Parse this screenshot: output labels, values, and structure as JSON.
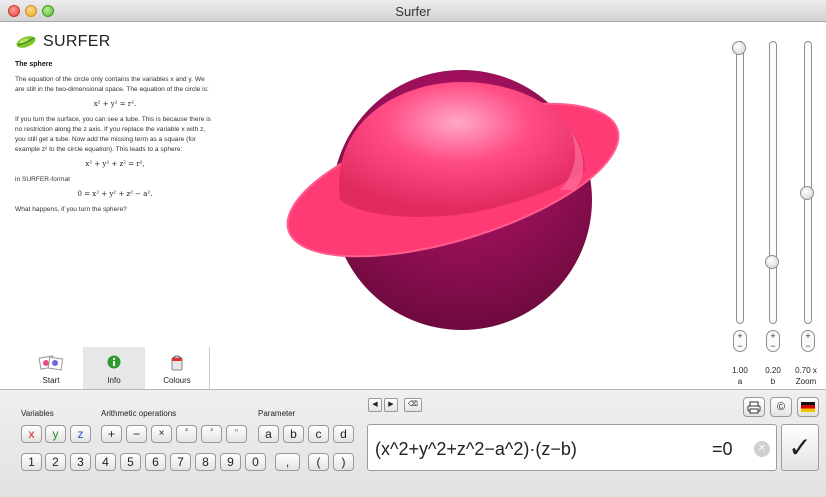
{
  "window": {
    "title": "Surfer"
  },
  "logo": {
    "text": "SURFER"
  },
  "document": {
    "heading": "The sphere",
    "p1": "The equation of the circle only contains the variables x and y. We are still in the two-dimensional space. The equation of the circle is:",
    "f1": "x² + y² = r².",
    "p2": "If you turn the surface, you can see a tube. This is because there is no restriction along the z axis. If you replace the variable x with z, you still get a tube. Now add the missing term as a square (for example z² to the circle equation). This leads to a sphere:",
    "f2": "x² + y² + z² = r²,",
    "p3": "in SURFER-format",
    "f3": "0 = x² + y² + z² − a².",
    "p4": "What happens, if you turn the sphere?"
  },
  "tabs": [
    {
      "label": "Start",
      "icon": "gallery-icon"
    },
    {
      "label": "Info",
      "icon": "info-icon"
    },
    {
      "label": "Colours",
      "icon": "paint-bucket-icon"
    }
  ],
  "sliders": [
    {
      "value": "1.00",
      "name": "a",
      "level": 1.0
    },
    {
      "value": "0.20",
      "name": "b",
      "level": 0.2
    },
    {
      "value": "0.70 x",
      "name": "Zoom",
      "level": 0.7
    }
  ],
  "keyboard": {
    "variables_label": "Variables",
    "arith_label": "Arithmetic operations",
    "param_label": "Parameter",
    "variables": [
      "x",
      "y",
      "z"
    ],
    "ops": [
      "+",
      "−",
      "×",
      "²",
      "³",
      "ⁿ"
    ],
    "params": [
      "a",
      "b",
      "c",
      "d"
    ],
    "digits": [
      "1",
      "2",
      "3",
      "4",
      "5",
      "6",
      "7",
      "8",
      "9",
      "0",
      ",",
      "(",
      ")"
    ]
  },
  "nav_icons": [
    "left-arrow-icon",
    "right-arrow-icon",
    "backspace-icon"
  ],
  "toolbar_icons": [
    "print-icon",
    "copyright-icon",
    "german-flag-icon"
  ],
  "equation": {
    "text": "(x^2+y^2+z^2−a^2)·(z−b)",
    "rhs": "=0"
  },
  "colors": {
    "surface": "#ff3b76",
    "inner": "#a8004f"
  }
}
